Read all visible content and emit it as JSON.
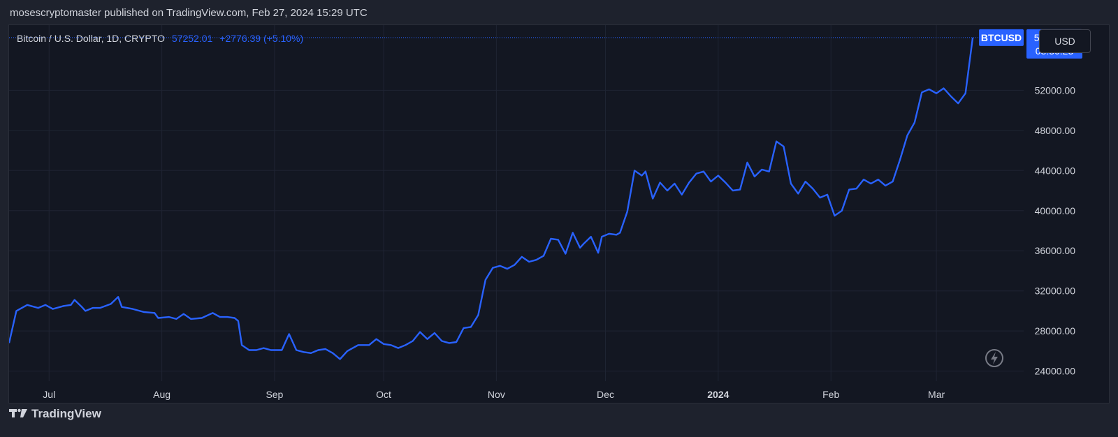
{
  "header": {
    "published_text": "mosescryptomaster published on TradingView.com, Feb 27, 2024 15:29 UTC"
  },
  "legend": {
    "symbol_text": "Bitcoin / U.S. Dollar, 1D, CRYPTO",
    "last_price": "57252.01",
    "change": "+2776.39 (+5.10%)"
  },
  "currency_button": "USD",
  "price_tag": {
    "ticker": "BTCUSD",
    "price": "57252.01",
    "countdown": "08:30:23"
  },
  "footer": {
    "brand": "TradingView"
  },
  "icons": {
    "logo": "tradingview-logo-icon",
    "lightning": "lightning-icon"
  },
  "colors": {
    "line": "#2962ff",
    "background": "#131722",
    "grid": "#1f2433",
    "accent": "#2962ff"
  },
  "chart_data": {
    "type": "line",
    "series": [
      {
        "name": "BTCUSD",
        "points": [
          [
            "2023-06-20",
            26800
          ],
          [
            "2023-06-22",
            30000
          ],
          [
            "2023-06-25",
            30600
          ],
          [
            "2023-06-28",
            30300
          ],
          [
            "2023-06-30",
            30600
          ],
          [
            "2023-07-02",
            30200
          ],
          [
            "2023-07-05",
            30500
          ],
          [
            "2023-07-07",
            30600
          ],
          [
            "2023-07-08",
            31100
          ],
          [
            "2023-07-10",
            30400
          ],
          [
            "2023-07-11",
            30000
          ],
          [
            "2023-07-13",
            30300
          ],
          [
            "2023-07-15",
            30300
          ],
          [
            "2023-07-18",
            30700
          ],
          [
            "2023-07-20",
            31400
          ],
          [
            "2023-07-21",
            30400
          ],
          [
            "2023-07-24",
            30200
          ],
          [
            "2023-07-27",
            29900
          ],
          [
            "2023-07-30",
            29800
          ],
          [
            "2023-07-31",
            29300
          ],
          [
            "2023-08-03",
            29400
          ],
          [
            "2023-08-05",
            29200
          ],
          [
            "2023-08-07",
            29700
          ],
          [
            "2023-08-09",
            29200
          ],
          [
            "2023-08-12",
            29300
          ],
          [
            "2023-08-15",
            29800
          ],
          [
            "2023-08-17",
            29400
          ],
          [
            "2023-08-19",
            29400
          ],
          [
            "2023-08-21",
            29300
          ],
          [
            "2023-08-22",
            29000
          ],
          [
            "2023-08-23",
            26600
          ],
          [
            "2023-08-25",
            26100
          ],
          [
            "2023-08-27",
            26100
          ],
          [
            "2023-08-29",
            26300
          ],
          [
            "2023-08-31",
            26100
          ],
          [
            "2023-09-03",
            26100
          ],
          [
            "2023-09-05",
            27700
          ],
          [
            "2023-09-07",
            26100
          ],
          [
            "2023-09-09",
            25900
          ],
          [
            "2023-09-11",
            25800
          ],
          [
            "2023-09-13",
            26100
          ],
          [
            "2023-09-15",
            26200
          ],
          [
            "2023-09-17",
            25800
          ],
          [
            "2023-09-19",
            25200
          ],
          [
            "2023-09-21",
            26000
          ],
          [
            "2023-09-24",
            26600
          ],
          [
            "2023-09-27",
            26600
          ],
          [
            "2023-09-29",
            27200
          ],
          [
            "2023-10-01",
            26700
          ],
          [
            "2023-10-03",
            26600
          ],
          [
            "2023-10-05",
            26300
          ],
          [
            "2023-10-07",
            26600
          ],
          [
            "2023-10-09",
            27000
          ],
          [
            "2023-10-11",
            27900
          ],
          [
            "2023-10-13",
            27200
          ],
          [
            "2023-10-15",
            27800
          ],
          [
            "2023-10-17",
            27000
          ],
          [
            "2023-10-19",
            26800
          ],
          [
            "2023-10-21",
            26900
          ],
          [
            "2023-10-23",
            28300
          ],
          [
            "2023-10-25",
            28400
          ],
          [
            "2023-10-27",
            29600
          ],
          [
            "2023-10-29",
            33100
          ],
          [
            "2023-10-31",
            34300
          ],
          [
            "2023-11-02",
            34500
          ],
          [
            "2023-11-04",
            34200
          ],
          [
            "2023-11-06",
            34600
          ],
          [
            "2023-11-08",
            35400
          ],
          [
            "2023-11-10",
            34900
          ],
          [
            "2023-11-12",
            35100
          ],
          [
            "2023-11-14",
            35500
          ],
          [
            "2023-11-16",
            37200
          ],
          [
            "2023-11-18",
            37100
          ],
          [
            "2023-11-20",
            35700
          ],
          [
            "2023-11-22",
            37800
          ],
          [
            "2023-11-24",
            36300
          ],
          [
            "2023-11-25",
            36700
          ],
          [
            "2023-11-27",
            37400
          ],
          [
            "2023-11-29",
            35800
          ],
          [
            "2023-11-30",
            37400
          ],
          [
            "2023-12-02",
            37700
          ],
          [
            "2023-12-04",
            37600
          ],
          [
            "2023-12-05",
            37800
          ],
          [
            "2023-12-07",
            39900
          ],
          [
            "2023-12-09",
            44000
          ],
          [
            "2023-12-11",
            43500
          ],
          [
            "2023-12-12",
            43900
          ],
          [
            "2023-12-14",
            41200
          ],
          [
            "2023-12-16",
            42800
          ],
          [
            "2023-12-18",
            42000
          ],
          [
            "2023-12-20",
            42700
          ],
          [
            "2023-12-22",
            41600
          ],
          [
            "2023-12-24",
            42800
          ],
          [
            "2023-12-26",
            43700
          ],
          [
            "2023-12-28",
            43900
          ],
          [
            "2023-12-30",
            42900
          ],
          [
            "2024-01-01",
            43500
          ],
          [
            "2024-01-03",
            42800
          ],
          [
            "2024-01-05",
            42000
          ],
          [
            "2024-01-07",
            42100
          ],
          [
            "2024-01-09",
            44800
          ],
          [
            "2024-01-11",
            43400
          ],
          [
            "2024-01-13",
            44100
          ],
          [
            "2024-01-15",
            43900
          ],
          [
            "2024-01-17",
            46900
          ],
          [
            "2024-01-19",
            46400
          ],
          [
            "2024-01-21",
            42700
          ],
          [
            "2024-01-23",
            41700
          ],
          [
            "2024-01-25",
            42900
          ],
          [
            "2024-01-27",
            42200
          ],
          [
            "2024-01-29",
            41300
          ],
          [
            "2024-01-31",
            41600
          ],
          [
            "2024-02-02",
            39500
          ],
          [
            "2024-02-04",
            40000
          ],
          [
            "2024-02-06",
            42100
          ],
          [
            "2024-02-08",
            42200
          ],
          [
            "2024-02-10",
            43100
          ],
          [
            "2024-02-12",
            42700
          ],
          [
            "2024-02-14",
            43100
          ],
          [
            "2024-02-16",
            42500
          ],
          [
            "2024-02-18",
            42900
          ],
          [
            "2024-02-20",
            45100
          ],
          [
            "2024-02-22",
            47500
          ],
          [
            "2024-02-24",
            48800
          ],
          [
            "2024-02-26",
            51800
          ],
          [
            "2024-02-28",
            52100
          ],
          [
            "2024-03-01",
            51700
          ],
          [
            "2024-03-03",
            52200
          ],
          [
            "2024-03-05",
            51400
          ],
          [
            "2024-03-07",
            50700
          ],
          [
            "2024-03-09",
            51700
          ],
          [
            "2024-03-11",
            57252
          ]
        ]
      }
    ],
    "x_ticks": [
      "Jul",
      "Aug",
      "Sep",
      "Oct",
      "Nov",
      "Dec",
      "2024",
      "Feb",
      "Mar"
    ],
    "y_ticks": [
      "24000.00",
      "28000.00",
      "32000.00",
      "36000.00",
      "40000.00",
      "44000.00",
      "48000.00",
      "52000.00"
    ],
    "ylim": [
      23000,
      58500
    ],
    "xlim": [
      "2023-06-20",
      "2024-03-25"
    ],
    "grid": true
  }
}
